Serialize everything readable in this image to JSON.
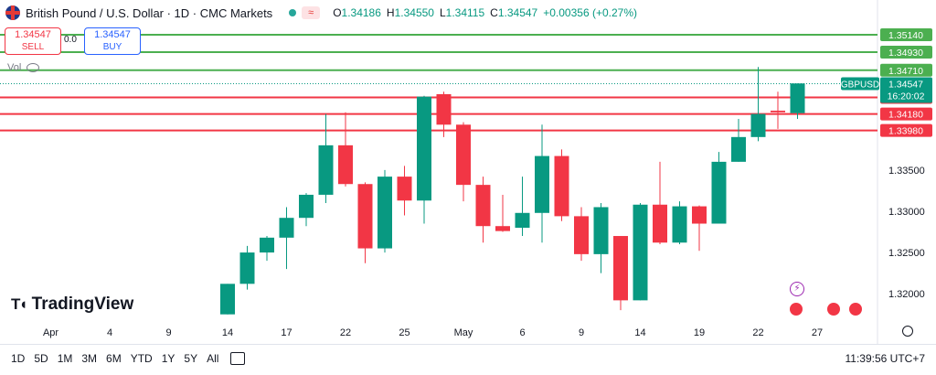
{
  "header": {
    "title": "British Pound / U.S. Dollar · 1D · CMC Markets",
    "o_label": "O",
    "o": "1.34186",
    "h_label": "H",
    "h": "1.34550",
    "l_label": "L",
    "l": "1.34115",
    "c_label": "C",
    "c": "1.34547",
    "change": "+0.00356 (+0.27%)",
    "badge": "≈"
  },
  "trade": {
    "sell_price": "1.34547",
    "sell_label": "SELL",
    "buy_price": "1.34547",
    "buy_label": "BUY",
    "spread": "0.0"
  },
  "volume_label": "Vol",
  "brand": "TradingView",
  "timeframes": [
    "1D",
    "5D",
    "1M",
    "3M",
    "6M",
    "YTD",
    "1Y",
    "5Y",
    "All"
  ],
  "clock": "11:39:56 UTC+7",
  "colors": {
    "up": "#089981",
    "down": "#f23645",
    "green_line": "#4caf50",
    "red_line": "#f23645"
  },
  "chart_data": {
    "type": "candlestick",
    "symbol": "GBPUSD",
    "countdown": "16:20:02",
    "last_price": 1.34547,
    "y_ticks": [
      1.32,
      1.325,
      1.33,
      1.335
    ],
    "ylim": [
      1.3168,
      1.3534
    ],
    "x_ticks": [
      {
        "label": "Apr",
        "i": -9
      },
      {
        "label": "4",
        "i": -6
      },
      {
        "label": "9",
        "i": -3
      },
      {
        "label": "14",
        "i": 0
      },
      {
        "label": "17",
        "i": 3
      },
      {
        "label": "22",
        "i": 6
      },
      {
        "label": "25",
        "i": 9
      },
      {
        "label": "May",
        "i": 12
      },
      {
        "label": "6",
        "i": 15
      },
      {
        "label": "9",
        "i": 18
      },
      {
        "label": "14",
        "i": 21
      },
      {
        "label": "19",
        "i": 24
      },
      {
        "label": "22",
        "i": 27
      },
      {
        "label": "27",
        "i": 30
      }
    ],
    "horizontal_lines": [
      {
        "price": 1.3514,
        "label": "1.35140",
        "kind": "resistance"
      },
      {
        "price": 1.3493,
        "label": "1.34930",
        "kind": "resistance"
      },
      {
        "price": 1.3471,
        "label": "1.34710",
        "kind": "resistance"
      },
      {
        "price": 1.3438,
        "label": "1.34380",
        "kind": "support"
      },
      {
        "price": 1.3418,
        "label": "1.34180",
        "kind": "support"
      },
      {
        "price": 1.3398,
        "label": "1.33980",
        "kind": "support"
      }
    ],
    "candles": [
      {
        "i": 0,
        "o": 1.3175,
        "h": 1.3212,
        "l": 1.3175,
        "c": 1.3212
      },
      {
        "i": 1,
        "o": 1.3212,
        "h": 1.3258,
        "l": 1.3205,
        "c": 1.325
      },
      {
        "i": 2,
        "o": 1.325,
        "h": 1.327,
        "l": 1.324,
        "c": 1.3268
      },
      {
        "i": 3,
        "o": 1.3268,
        "h": 1.3305,
        "l": 1.323,
        "c": 1.3292
      },
      {
        "i": 4,
        "o": 1.3292,
        "h": 1.3322,
        "l": 1.3282,
        "c": 1.332
      },
      {
        "i": 5,
        "o": 1.332,
        "h": 1.3418,
        "l": 1.331,
        "c": 1.338
      },
      {
        "i": 6,
        "o": 1.338,
        "h": 1.342,
        "l": 1.333,
        "c": 1.3333
      },
      {
        "i": 7,
        "o": 1.3333,
        "h": 1.3335,
        "l": 1.3237,
        "c": 1.3255
      },
      {
        "i": 8,
        "o": 1.3255,
        "h": 1.335,
        "l": 1.325,
        "c": 1.3342
      },
      {
        "i": 9,
        "o": 1.3342,
        "h": 1.3355,
        "l": 1.3295,
        "c": 1.3313
      },
      {
        "i": 10,
        "o": 1.3313,
        "h": 1.344,
        "l": 1.3285,
        "c": 1.3439
      },
      {
        "i": 11,
        "o": 1.3442,
        "h": 1.3445,
        "l": 1.339,
        "c": 1.3405
      },
      {
        "i": 12,
        "o": 1.3405,
        "h": 1.3408,
        "l": 1.3312,
        "c": 1.3332
      },
      {
        "i": 13,
        "o": 1.3332,
        "h": 1.3342,
        "l": 1.3262,
        "c": 1.3282
      },
      {
        "i": 14,
        "o": 1.3282,
        "h": 1.332,
        "l": 1.3275,
        "c": 1.3276
      },
      {
        "i": 15,
        "o": 1.328,
        "h": 1.3342,
        "l": 1.327,
        "c": 1.3298
      },
      {
        "i": 16,
        "o": 1.3298,
        "h": 1.3405,
        "l": 1.3262,
        "c": 1.3367
      },
      {
        "i": 17,
        "o": 1.3367,
        "h": 1.3375,
        "l": 1.3288,
        "c": 1.3294
      },
      {
        "i": 18,
        "o": 1.3294,
        "h": 1.3305,
        "l": 1.324,
        "c": 1.3248
      },
      {
        "i": 19,
        "o": 1.3248,
        "h": 1.331,
        "l": 1.3225,
        "c": 1.3305
      },
      {
        "i": 20,
        "o": 1.327,
        "h": 1.327,
        "l": 1.318,
        "c": 1.3192
      },
      {
        "i": 21,
        "o": 1.3192,
        "h": 1.331,
        "l": 1.3192,
        "c": 1.3308
      },
      {
        "i": 22,
        "o": 1.3308,
        "h": 1.336,
        "l": 1.326,
        "c": 1.3262
      },
      {
        "i": 23,
        "o": 1.3262,
        "h": 1.3312,
        "l": 1.326,
        "c": 1.3306
      },
      {
        "i": 24,
        "o": 1.3306,
        "h": 1.3307,
        "l": 1.3252,
        "c": 1.3285
      },
      {
        "i": 25,
        "o": 1.3285,
        "h": 1.3372,
        "l": 1.3285,
        "c": 1.336
      },
      {
        "i": 26,
        "o": 1.336,
        "h": 1.3412,
        "l": 1.336,
        "c": 1.339
      },
      {
        "i": 27,
        "o": 1.339,
        "h": 1.3475,
        "l": 1.3385,
        "c": 1.3418
      },
      {
        "i": 28,
        "o": 1.3422,
        "h": 1.3445,
        "l": 1.34,
        "c": 1.342
      },
      {
        "i": 29,
        "o": 1.3419,
        "h": 1.3455,
        "l": 1.3412,
        "c": 1.3455
      }
    ]
  }
}
